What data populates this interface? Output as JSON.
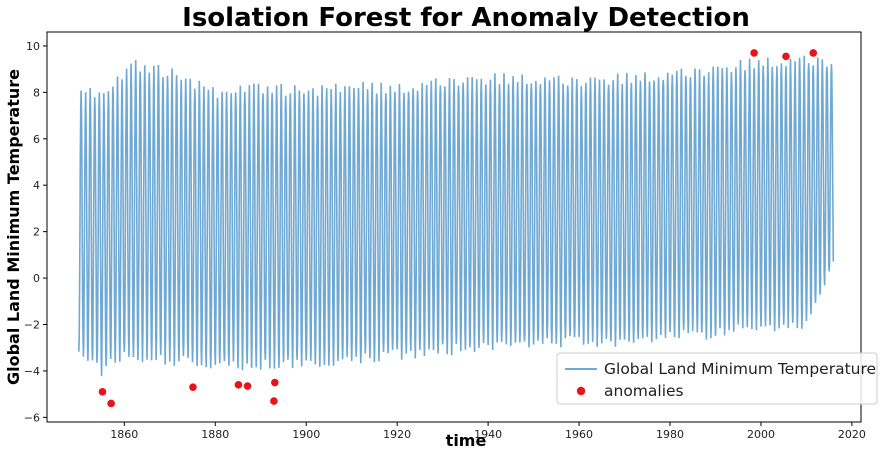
{
  "chart_data": {
    "type": "line",
    "title": "Isolation Forest for Anomaly Detection",
    "xlabel": "time",
    "ylabel": "Global Land Minimum Temperature",
    "xlim": [
      1843,
      2022
    ],
    "ylim": [
      -6.2,
      10.6
    ],
    "x_ticks": [
      1860,
      1880,
      1900,
      1920,
      1940,
      1960,
      1980,
      2000,
      2020
    ],
    "y_ticks": [
      -6,
      -4,
      -2,
      0,
      2,
      4,
      6,
      8,
      10
    ],
    "grid": false,
    "legend_position": "lower-right",
    "colors": {
      "line": "#6fa8d2",
      "anomaly": "#e8141b"
    },
    "series": [
      {
        "name": "Global Land Minimum Temperature",
        "kind": "line",
        "x_start": 1850,
        "x_end": 2015.92,
        "seasonal_description": "monthly values oscillating yearly between winter minimum and summer maximum",
        "peaks": [
          {
            "x": 1850.5,
            "y": 8.0
          },
          {
            "x": 1855.5,
            "y": 7.9
          },
          {
            "x": 1862.5,
            "y": 9.2
          },
          {
            "x": 1870.5,
            "y": 8.8
          },
          {
            "x": 1880.5,
            "y": 7.9
          },
          {
            "x": 1890.5,
            "y": 8.2
          },
          {
            "x": 1900.5,
            "y": 8.0
          },
          {
            "x": 1910.5,
            "y": 8.2
          },
          {
            "x": 1920.5,
            "y": 8.2
          },
          {
            "x": 1930.5,
            "y": 8.5
          },
          {
            "x": 1940.5,
            "y": 8.6
          },
          {
            "x": 1950.5,
            "y": 8.6
          },
          {
            "x": 1960.5,
            "y": 8.5
          },
          {
            "x": 1970.5,
            "y": 8.6
          },
          {
            "x": 1980.5,
            "y": 8.8
          },
          {
            "x": 1990.5,
            "y": 9.0
          },
          {
            "x": 2000.5,
            "y": 9.3
          },
          {
            "x": 2010.5,
            "y": 9.4
          },
          {
            "x": 2015.5,
            "y": 9.3
          }
        ],
        "troughs": [
          {
            "x": 1850.0,
            "y": -3.2
          },
          {
            "x": 1855.0,
            "y": -4.0
          },
          {
            "x": 1860.0,
            "y": -3.3
          },
          {
            "x": 1870.0,
            "y": -3.5
          },
          {
            "x": 1880.0,
            "y": -3.8
          },
          {
            "x": 1890.0,
            "y": -3.7
          },
          {
            "x": 1900.0,
            "y": -3.7
          },
          {
            "x": 1910.0,
            "y": -3.5
          },
          {
            "x": 1920.0,
            "y": -3.3
          },
          {
            "x": 1930.0,
            "y": -3.1
          },
          {
            "x": 1940.0,
            "y": -3.0
          },
          {
            "x": 1950.0,
            "y": -2.9
          },
          {
            "x": 1960.0,
            "y": -2.7
          },
          {
            "x": 1970.0,
            "y": -2.8
          },
          {
            "x": 1980.0,
            "y": -2.5
          },
          {
            "x": 1990.0,
            "y": -2.4
          },
          {
            "x": 2000.0,
            "y": -2.1
          },
          {
            "x": 2010.0,
            "y": -2.0
          },
          {
            "x": 2015.5,
            "y": 0.3
          }
        ]
      },
      {
        "name": "anomalies",
        "kind": "scatter",
        "points": [
          {
            "x": 1855.2,
            "y": -4.9
          },
          {
            "x": 1857.1,
            "y": -5.4
          },
          {
            "x": 1875.1,
            "y": -4.7
          },
          {
            "x": 1885.1,
            "y": -4.6
          },
          {
            "x": 1887.1,
            "y": -4.65
          },
          {
            "x": 1892.9,
            "y": -5.3
          },
          {
            "x": 1893.1,
            "y": -4.5
          },
          {
            "x": 1998.5,
            "y": 9.7
          },
          {
            "x": 2005.5,
            "y": 9.55
          },
          {
            "x": 2011.5,
            "y": 9.7
          }
        ]
      }
    ]
  }
}
